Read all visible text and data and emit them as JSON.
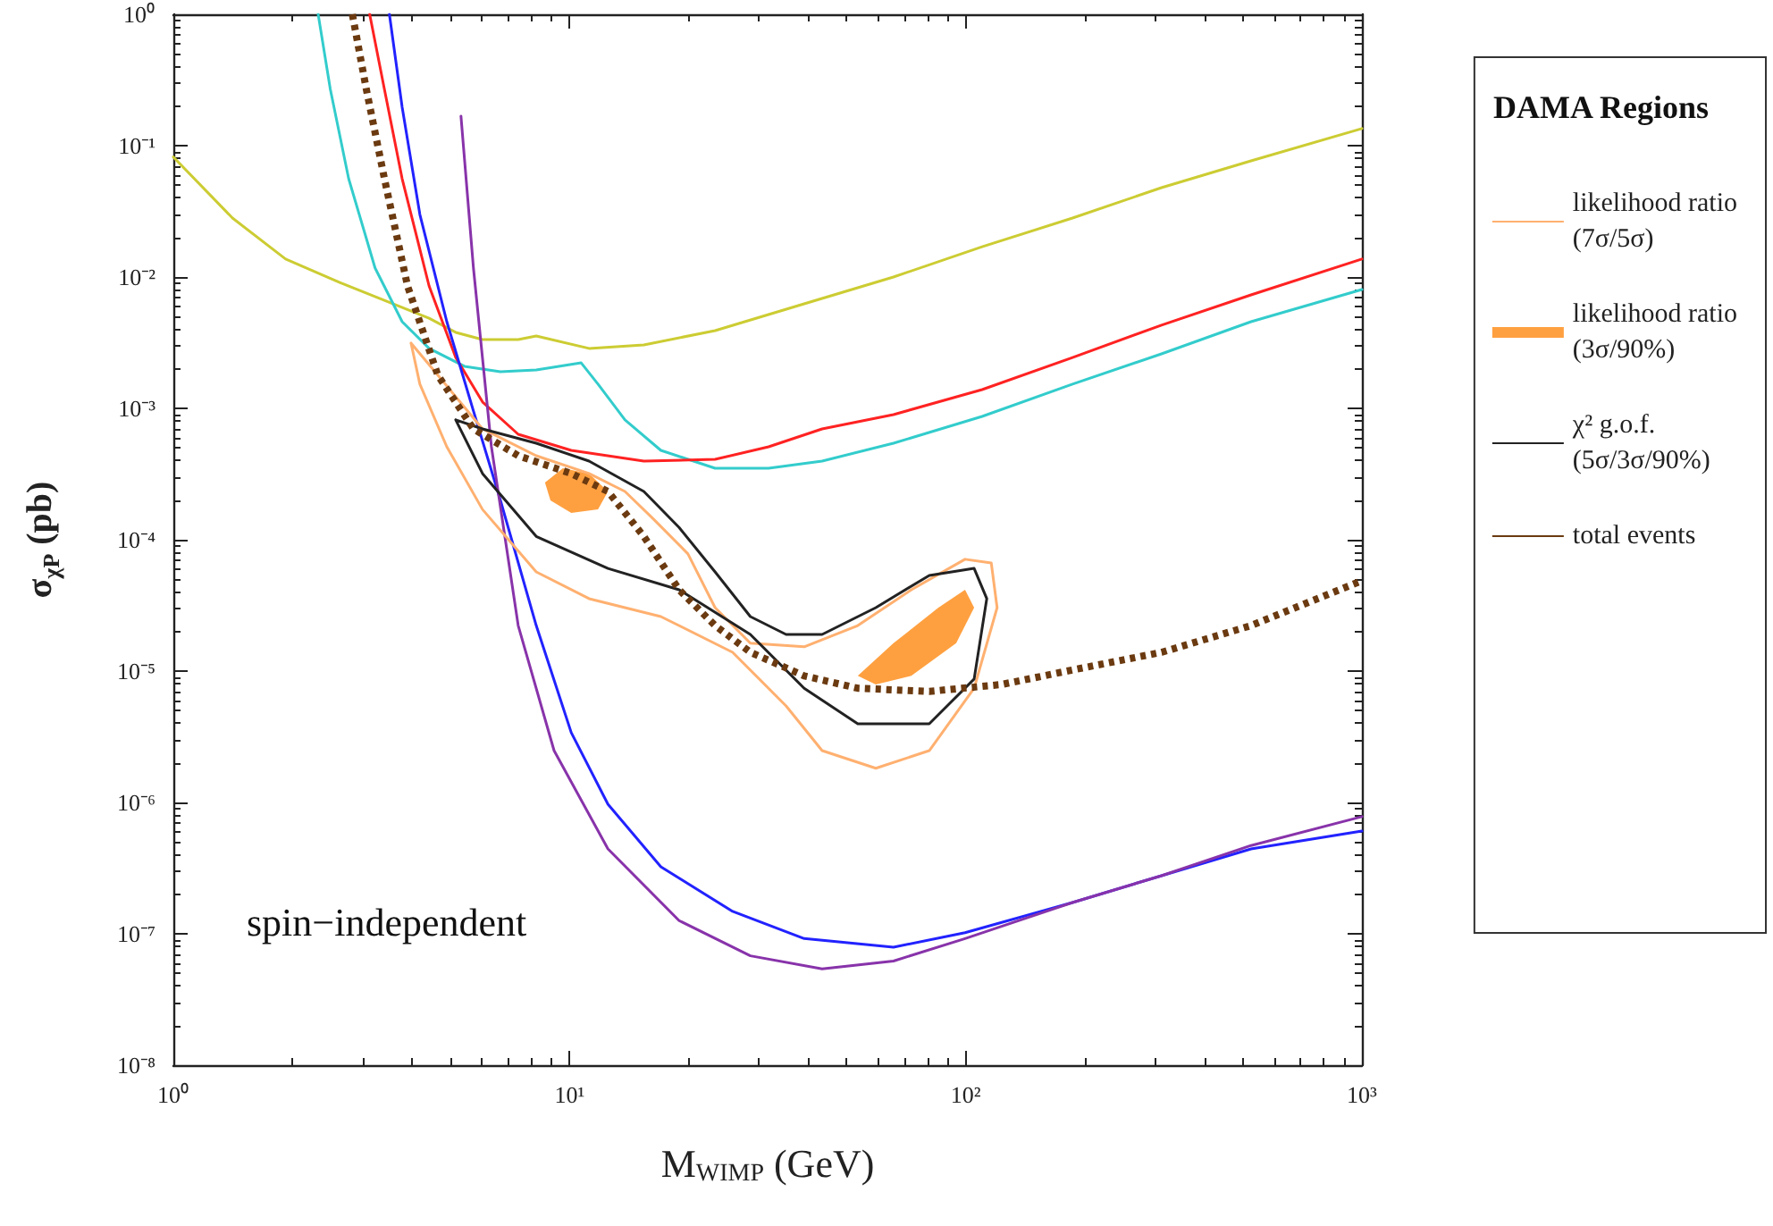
{
  "chart_data": {
    "type": "line",
    "xlabel": "M$_{WIMP}$ (GeV)",
    "ylabel": "σ$_{χP}$ (pb)",
    "legend_title": "DAMA Regions",
    "log": "xy",
    "grid": false,
    "marker": "none",
    "legend": "right",
    "xlim": [
      1,
      1000
    ],
    "xticks": [
      {
        "value": 1,
        "label": "10⁰"
      },
      {
        "value": 10,
        "label": "10¹"
      },
      {
        "value": 100,
        "label": "10²"
      },
      {
        "value": 1000,
        "label": "10³"
      }
    ],
    "ylim": [
      1e-08,
      1
    ],
    "yticks": [
      {
        "value": 1e-08,
        "label": "10⁻⁸"
      },
      {
        "value": 1e-07,
        "label": "10⁻⁷"
      },
      {
        "value": 1e-06,
        "label": "10⁻⁶"
      },
      {
        "value": 1e-05,
        "label": "10⁻⁵"
      },
      {
        "value": 0.0001,
        "label": "10⁻⁴"
      },
      {
        "value": 0.001,
        "label": "10⁻³"
      },
      {
        "value": 0.01,
        "label": "10⁻²"
      },
      {
        "value": 0.1,
        "label": "10⁻¹"
      },
      {
        "value": 1,
        "label": "10⁰"
      }
    ],
    "annotations": [
      "spin−independent"
    ],
    "series": [
      {
        "color": "#cccc33",
        "x": [
          1,
          1.41,
          1.92,
          2.63,
          3.41,
          4.42,
          5.16,
          6.03,
          7.42,
          8.24,
          11.2,
          15.4,
          23.3,
          39.1,
          65.7,
          110,
          186,
          312,
          525,
          1000
        ],
        "values": [
          0.082,
          0.0281,
          0.0137,
          0.0091,
          0.00665,
          0.00486,
          0.00379,
          0.00334,
          0.00334,
          0.00356,
          0.00286,
          0.00304,
          0.00391,
          0.00625,
          0.01,
          0.017,
          0.0281,
          0.0479,
          0.0766,
          0.135
        ]
      },
      {
        "color": "#33cccc",
        "x": [
          2.32,
          2.49,
          2.77,
          3.23,
          3.78,
          4.42,
          5.43,
          6.69,
          8.24,
          10.7,
          11.8,
          13.8,
          17,
          23.3,
          31.8,
          43.4,
          65.7,
          110,
          186,
          312,
          525,
          1000
        ],
        "values": [
          1,
          0.268,
          0.056,
          0.0117,
          0.00457,
          0.00286,
          0.00209,
          0.0019,
          0.00196,
          0.00222,
          0.00153,
          0.000817,
          0.000479,
          0.00035,
          0.00035,
          0.000397,
          0.000543,
          0.000869,
          0.00153,
          0.0026,
          0.00457,
          0.00803
        ]
      },
      {
        "color": "#ff2222",
        "x": [
          3.13,
          3.41,
          3.78,
          4.42,
          5.16,
          6.03,
          7.42,
          10.1,
          15.4,
          23.3,
          31.8,
          43.4,
          65.7,
          110,
          186,
          312,
          525,
          1000
        ],
        "values": [
          1,
          0.268,
          0.056,
          0.00855,
          0.00244,
          0.00112,
          0.000635,
          0.000479,
          0.000397,
          0.000409,
          0.00051,
          0.000698,
          0.000896,
          0.00139,
          0.00244,
          0.0043,
          0.00731,
          0.0137
        ]
      },
      {
        "color": "#2222ff",
        "x": [
          3.51,
          3.78,
          4.19,
          4.9,
          5.72,
          6.69,
          8.24,
          10.1,
          12.5,
          17,
          25.8,
          39.1,
          65.7,
          99.6,
          186,
          312,
          525,
          1000
        ],
        "values": [
          1,
          0.196,
          0.0299,
          0.00457,
          0.000955,
          0.0002,
          2.22e-05,
          3.4e-06,
          9.7e-07,
          3.24e-07,
          1.48e-07,
          9.2e-08,
          7.9e-08,
          1.02e-07,
          1.73e-07,
          2.77e-07,
          4.43e-07,
          6.05e-07
        ]
      },
      {
        "color": "#8833aa",
        "x": [
          5.32,
          5.72,
          6.35,
          7.42,
          9.14,
          12.5,
          18.9,
          28.6,
          43.4,
          65.7,
          99.6,
          186,
          312,
          525,
          1000
        ],
        "values": [
          0.168,
          0.0117,
          0.00051,
          2.22e-05,
          2.48e-06,
          4.43e-07,
          1.26e-07,
          6.8e-08,
          5.4e-08,
          6.2e-08,
          9.2e-08,
          1.73e-07,
          2.77e-07,
          4.7e-07,
          7.8e-07
        ]
      },
      {
        "name": "likelihood ratio\n(7σ/5σ)",
        "color": "#ffb070",
        "x": [
          3.98,
          4.19,
          4.9,
          6.03,
          8.24,
          11.2,
          17,
          25.8,
          35.2,
          43.4,
          59.3,
          80.9,
          105,
          120,
          null,
          3.98,
          4.65,
          6.03,
          8.24,
          11.2,
          13.8,
          16.2,
          19.9,
          23.3,
          28.6,
          39.1,
          53.4,
          72.9,
          99.6,
          116,
          120
        ],
        "values": [
          0.00314,
          0.00153,
          0.00051,
          0.00017,
          5.69e-05,
          3.56e-05,
          2.6e-05,
          1.39e-05,
          5.43e-06,
          2.48e-06,
          1.82e-06,
          2.48e-06,
          7.4e-06,
          3.04e-05,
          null,
          0.00314,
          0.00179,
          0.000698,
          0.000436,
          0.000319,
          0.000233,
          0.000146,
          7.8e-05,
          3.04e-05,
          1.63e-05,
          1.53e-05,
          2.22e-05,
          4.16e-05,
          7.1e-05,
          6.65e-05,
          3.04e-05
        ]
      },
      {
        "type": "area",
        "name": "likelihood ratio\n(3σ/90%)",
        "color": "#ffa040",
        "x": [
          8.67,
          9.62,
          11.2,
          12.5,
          11.8,
          10.1,
          8.95,
          8.67,
          null,
          53.4,
          65.7,
          85.3,
          99.6,
          105,
          94.6,
          72.9,
          59.3,
          53.4
        ],
        "values": [
          0.000272,
          0.00035,
          0.000319,
          0.000233,
          0.00017,
          0.00016,
          0.000199,
          0.000272,
          null,
          9.2e-06,
          1.63e-05,
          3.04e-05,
          4.16e-05,
          3.04e-05,
          1.63e-05,
          9.2e-06,
          7.9e-06,
          9.2e-06
        ]
      },
      {
        "name": "χ² g.o.f.\n(5σ/3σ/90%)",
        "color": "#222222",
        "x": [
          5.16,
          6.03,
          8.24,
          12.5,
          18.9,
          28.6,
          39.1,
          53.4,
          80.9,
          105,
          113,
          null,
          5.16,
          6.03,
          8.24,
          11.2,
          15.4,
          18.9,
          23.3,
          28.6,
          35.2,
          43.4,
          59.3,
          80.9,
          105,
          113
        ],
        "values": [
          0.000817,
          0.000319,
          0.000106,
          6.05e-05,
          4.16e-05,
          1.9e-05,
          7.4e-06,
          3.97e-06,
          3.97e-06,
          8.7e-06,
          3.56e-05,
          null,
          0.000817,
          0.000698,
          0.000543,
          0.000397,
          0.000233,
          0.000124,
          5.69e-05,
          2.6e-05,
          1.9e-05,
          1.9e-05,
          3.04e-05,
          5.35e-05,
          6.05e-05,
          3.56e-05
        ]
      },
      {
        "name": "total events",
        "color": "#6b3a10",
        "line_style": "dotted",
        "x": [
          2.83,
          3.07,
          3.41,
          3.9,
          4.65,
          5.72,
          7.42,
          10.1,
          12.5,
          15.4,
          18.9,
          23.3,
          28.6,
          39.1,
          53.4,
          80.9,
          123,
          186,
          312,
          525,
          1000
        ],
        "values": [
          1,
          0.268,
          0.056,
          0.00855,
          0.00179,
          0.000698,
          0.000436,
          0.000319,
          0.000233,
          0.000106,
          4.16e-05,
          2.22e-05,
          1.39e-05,
          9.2e-06,
          7.4e-06,
          7e-06,
          7.9e-06,
          1.02e-05,
          1.39e-05,
          2.22e-05,
          4.87e-05
        ]
      }
    ]
  }
}
